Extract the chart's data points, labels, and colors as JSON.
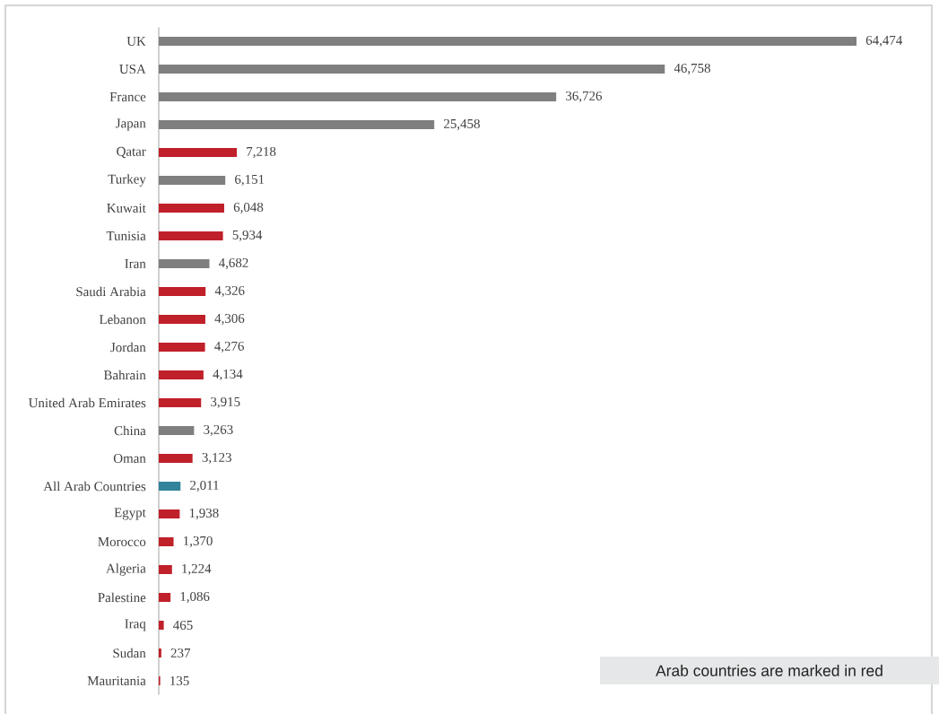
{
  "chart_data": {
    "type": "bar",
    "orientation": "horizontal",
    "categories": [
      "UK",
      "USA",
      "France",
      "Japan",
      "Qatar",
      "Turkey",
      "Kuwait",
      "Tunisia",
      "Iran",
      "Saudi Arabia",
      "Lebanon",
      "Jordan",
      "Bahrain",
      "United Arab Emirates",
      "China",
      "Oman",
      "All Arab Countries",
      "Egypt",
      "Morocco",
      "Algeria",
      "Palestine",
      "Iraq",
      "Sudan",
      "Mauritania"
    ],
    "values": [
      64474,
      46758,
      36726,
      25458,
      7218,
      6151,
      6048,
      5934,
      4682,
      4326,
      4306,
      4276,
      4134,
      3915,
      3263,
      3123,
      2011,
      1938,
      1370,
      1224,
      1086,
      465,
      237,
      135
    ],
    "colors": [
      "#7f7f7f",
      "#7f7f7f",
      "#7f7f7f",
      "#7f7f7f",
      "#c0202a",
      "#7f7f7f",
      "#c0202a",
      "#c0202a",
      "#7f7f7f",
      "#c0202a",
      "#c0202a",
      "#c0202a",
      "#c0202a",
      "#c0202a",
      "#7f7f7f",
      "#c0202a",
      "#31849b",
      "#c0202a",
      "#c0202a",
      "#c0202a",
      "#c0202a",
      "#c0202a",
      "#c0202a",
      "#c0202a"
    ],
    "value_labels": [
      "64,474",
      "46,758",
      "36,726",
      "25,458",
      "7,218",
      "6,151",
      "6,048",
      "5,934",
      "4,682",
      "4,326",
      "4,306",
      "4,276",
      "4,134",
      "3,915",
      "3,263",
      "3,123",
      "2,011",
      "1,938",
      "1,370",
      "1,224",
      "1,086",
      "465",
      "237",
      "135"
    ],
    "annotations": [
      "Arab countries are marked in red"
    ]
  }
}
